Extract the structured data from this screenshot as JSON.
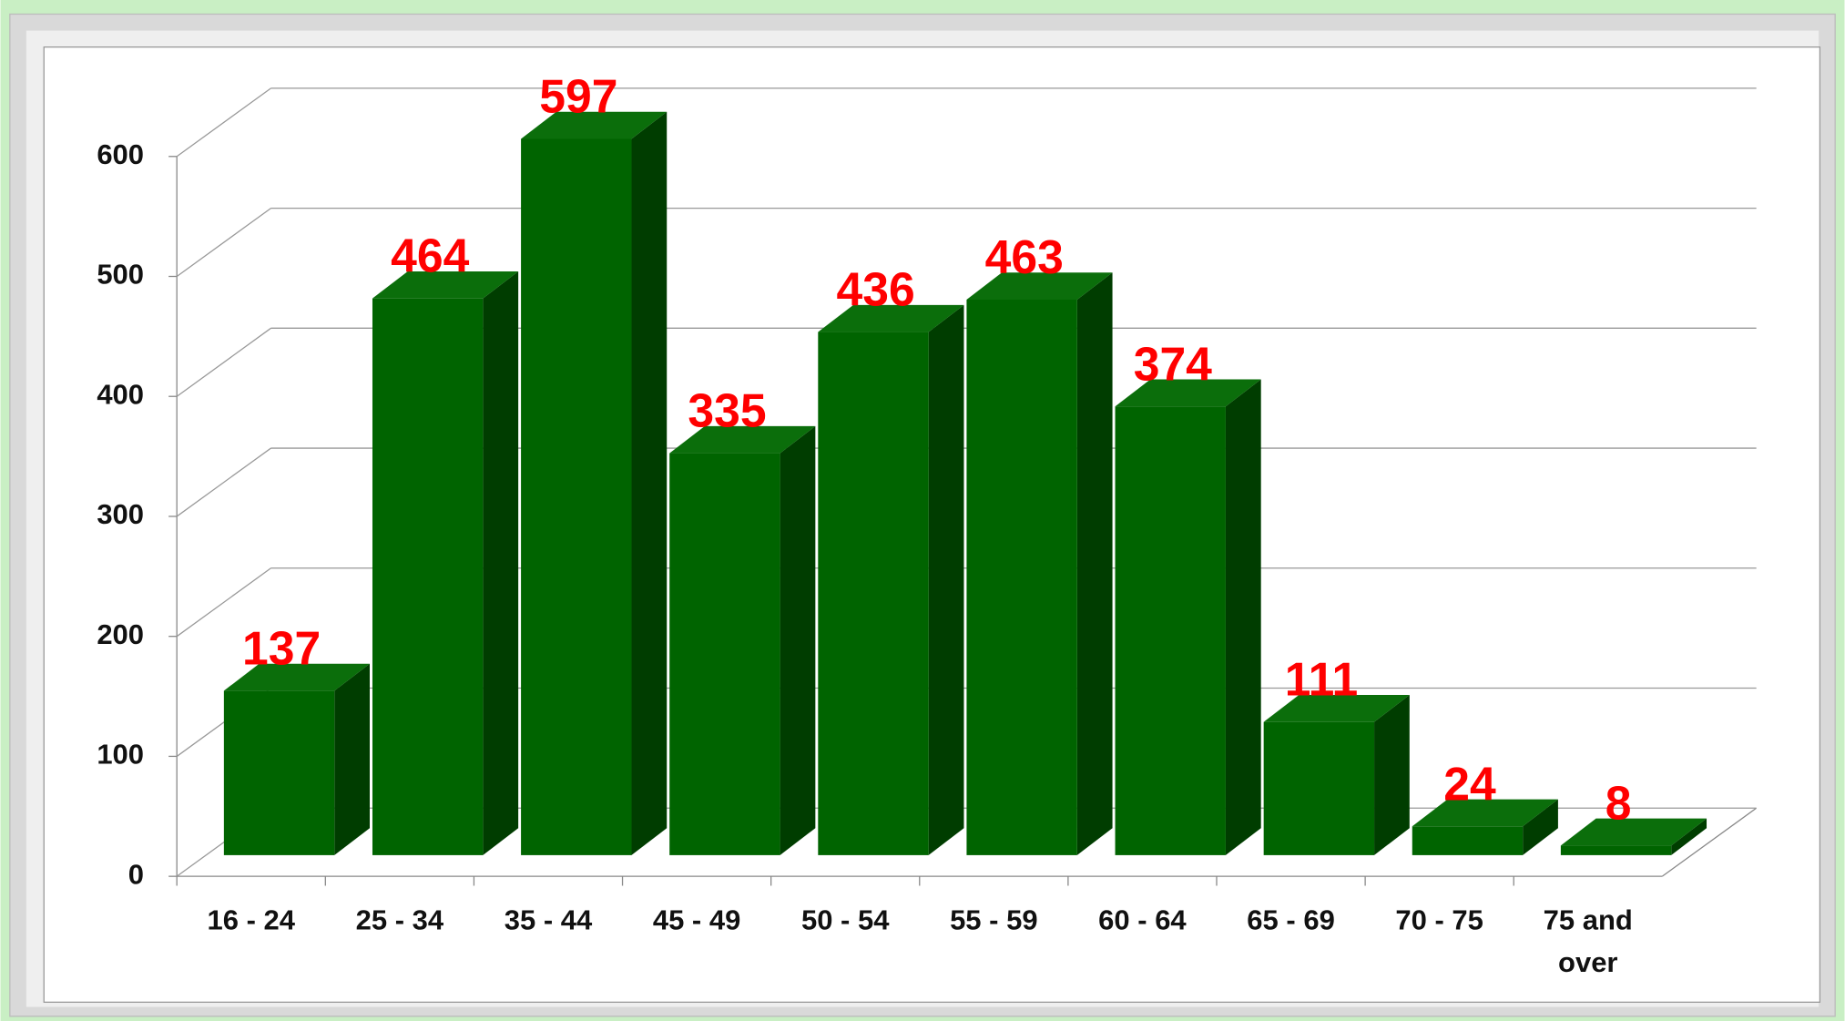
{
  "chart_data": {
    "type": "bar3d",
    "categories": [
      "16 - 24",
      "25 - 34",
      "35 - 44",
      "45 - 49",
      "50 - 54",
      "55 - 59",
      "60 - 64",
      "65 - 69",
      "70 - 75",
      "75 and over"
    ],
    "values": [
      137,
      464,
      597,
      335,
      436,
      463,
      374,
      111,
      24,
      8
    ],
    "color": "#006400",
    "label_color": "#ff0000",
    "ylim": [
      0,
      600
    ],
    "yticks": [
      0,
      100,
      200,
      300,
      400,
      500,
      600
    ],
    "grid": true
  }
}
